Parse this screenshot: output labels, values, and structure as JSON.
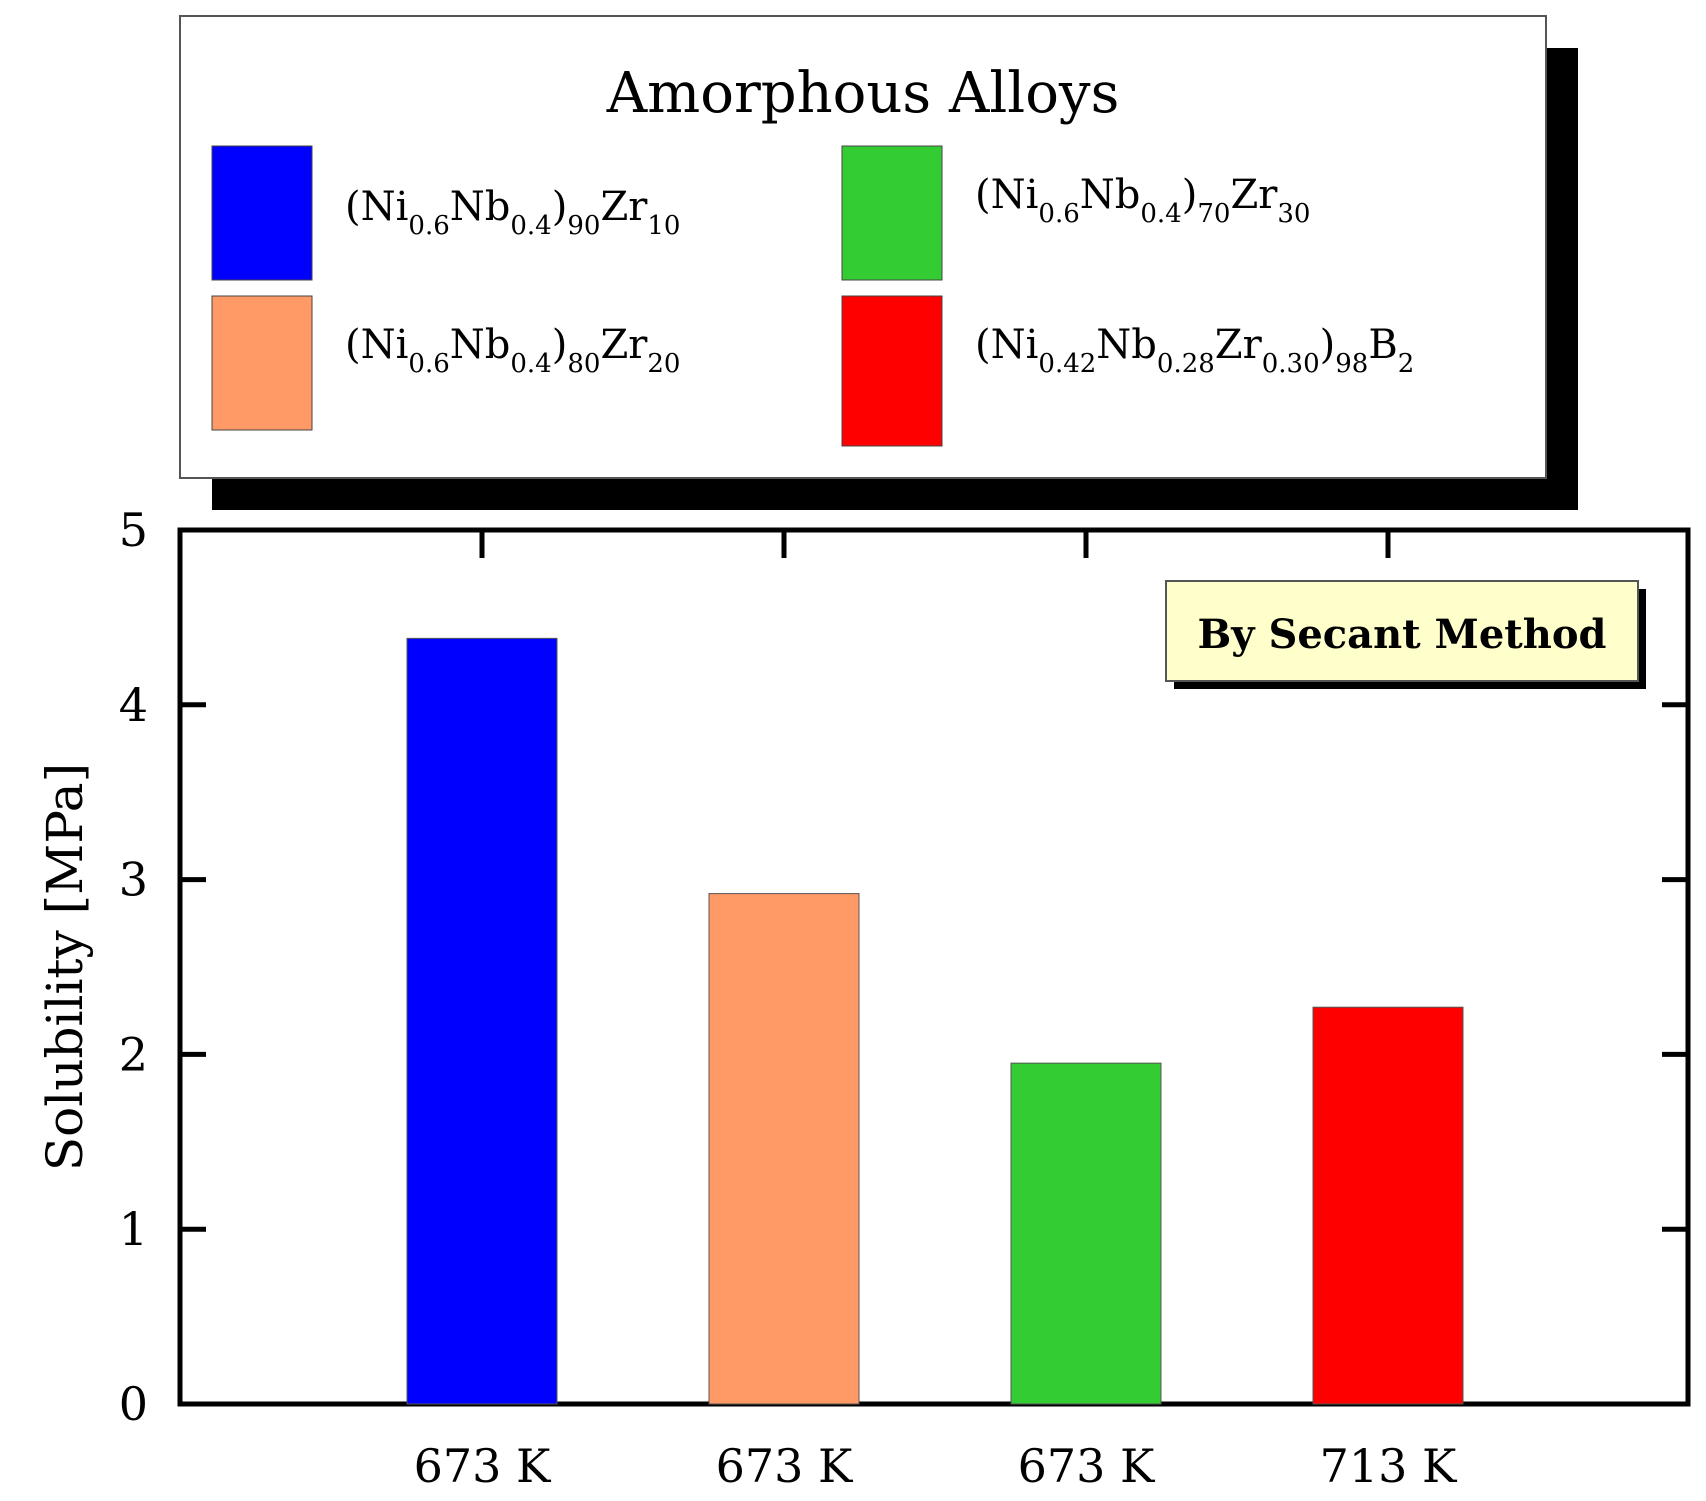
{
  "chart_data": {
    "type": "bar",
    "legend_title": "Amorphous Alloys",
    "legend_placement": "top",
    "annotation": "By Secant Method",
    "annotation_bg": "#ffffcc",
    "ylabel": "Solubility [MPa]",
    "xlabel": "",
    "ylim": [
      0,
      5
    ],
    "yticks": [
      "0",
      "1",
      "2",
      "3",
      "4",
      "5"
    ],
    "categories": [
      "673 K",
      "673 K",
      "673 K",
      "713 K"
    ],
    "grid": false,
    "series": [
      {
        "name_parts": [
          {
            "t": "(Ni",
            "sub": false
          },
          {
            "t": "0.6",
            "sub": true
          },
          {
            "t": "Nb",
            "sub": false
          },
          {
            "t": "0.4",
            "sub": true
          },
          {
            "t": ")",
            "sub": false
          },
          {
            "t": "90",
            "sub": true
          },
          {
            "t": "Zr",
            "sub": false
          },
          {
            "t": "10",
            "sub": true
          }
        ],
        "value": 4.38,
        "color": "#0000ff"
      },
      {
        "name_parts": [
          {
            "t": "(Ni",
            "sub": false
          },
          {
            "t": "0.6",
            "sub": true
          },
          {
            "t": "Nb",
            "sub": false
          },
          {
            "t": "0.4",
            "sub": true
          },
          {
            "t": ")",
            "sub": false
          },
          {
            "t": "80",
            "sub": true
          },
          {
            "t": "Zr",
            "sub": false
          },
          {
            "t": "20",
            "sub": true
          }
        ],
        "value": 2.92,
        "color": "#ff9966"
      },
      {
        "name_parts": [
          {
            "t": "(Ni",
            "sub": false
          },
          {
            "t": "0.6",
            "sub": true
          },
          {
            "t": "Nb",
            "sub": false
          },
          {
            "t": "0.4",
            "sub": true
          },
          {
            "t": ")",
            "sub": false
          },
          {
            "t": "70",
            "sub": true
          },
          {
            "t": "Zr",
            "sub": false
          },
          {
            "t": "30",
            "sub": true
          }
        ],
        "value": 1.95,
        "color": "#33cc33"
      },
      {
        "name_parts": [
          {
            "t": "(Ni",
            "sub": false
          },
          {
            "t": "0.42",
            "sub": true
          },
          {
            "t": "Nb",
            "sub": false
          },
          {
            "t": "0.28",
            "sub": true
          },
          {
            "t": "Zr",
            "sub": false
          },
          {
            "t": "0.30",
            "sub": true
          },
          {
            "t": ")",
            "sub": false
          },
          {
            "t": "98",
            "sub": true
          },
          {
            "t": "B",
            "sub": false
          },
          {
            "t": "2",
            "sub": true
          }
        ],
        "value": 2.27,
        "color": "#ff0000"
      }
    ]
  }
}
